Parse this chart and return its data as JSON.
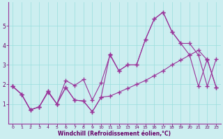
{
  "xlabel": "Windchill (Refroidissement éolien,°C)",
  "bg_color": "#cceef0",
  "line_color": "#993399",
  "xlim": [
    -0.5,
    23.5
  ],
  "ylim": [
    0,
    6.2
  ],
  "yticks": [
    1,
    2,
    3,
    4,
    5
  ],
  "ytick_labels": [
    "1",
    "2",
    "3",
    "4",
    "5"
  ],
  "xticks": [
    0,
    1,
    2,
    3,
    4,
    5,
    6,
    7,
    8,
    9,
    10,
    11,
    12,
    13,
    14,
    15,
    16,
    17,
    18,
    19,
    20,
    21,
    22,
    23
  ],
  "line1_y": [
    1.9,
    1.5,
    0.7,
    0.85,
    1.6,
    1.0,
    1.85,
    1.2,
    1.15,
    0.6,
    1.35,
    1.4,
    1.6,
    1.8,
    2.0,
    2.2,
    2.45,
    2.7,
    3.0,
    3.25,
    3.5,
    3.75,
    3.25,
    1.85
  ],
  "line2_y": [
    1.9,
    1.5,
    0.7,
    0.85,
    1.65,
    1.0,
    2.2,
    1.95,
    2.25,
    1.2,
    2.1,
    3.5,
    2.7,
    3.0,
    3.0,
    4.3,
    5.35,
    5.7,
    4.7,
    4.1,
    3.5,
    1.9,
    3.3,
    1.85
  ],
  "line3_y": [
    1.9,
    1.5,
    0.7,
    0.85,
    1.65,
    1.0,
    1.85,
    1.2,
    1.15,
    0.6,
    1.35,
    3.55,
    2.7,
    3.0,
    3.0,
    4.3,
    5.35,
    5.7,
    4.7,
    4.1,
    4.1,
    3.5,
    1.9,
    3.3
  ]
}
